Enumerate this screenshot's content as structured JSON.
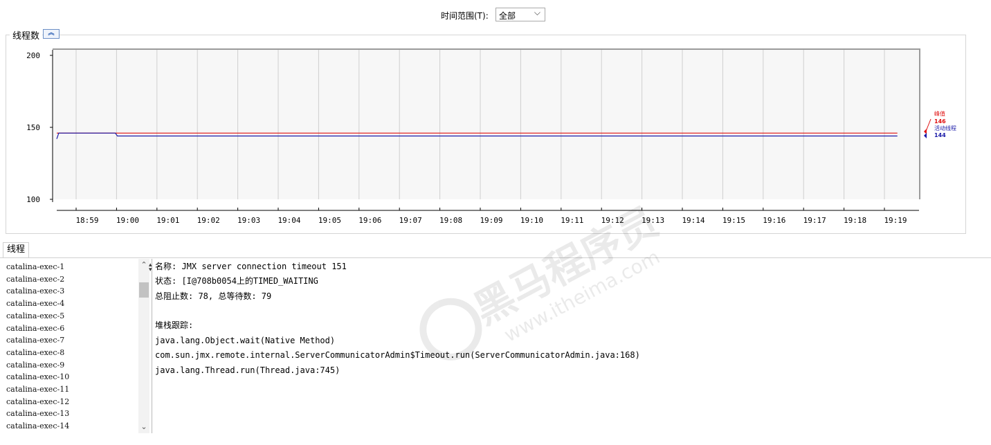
{
  "time_range": {
    "label": "时间范围(T):",
    "selected": "全部"
  },
  "panel": {
    "title": "线程数",
    "collapse_icon": "double-chevron-up-icon"
  },
  "chart_data": {
    "type": "line",
    "title": "线程数",
    "ylim": [
      100,
      200
    ],
    "yticks": [
      100,
      150,
      200
    ],
    "x_start": "18:58:30",
    "categories": [
      "18:59",
      "19:00",
      "19:01",
      "19:02",
      "19:03",
      "19:04",
      "19:05",
      "19:06",
      "19:07",
      "19:08",
      "19:09",
      "19:10",
      "19:11",
      "19:12",
      "19:13",
      "19:14",
      "19:15",
      "19:16",
      "19:17",
      "19:18",
      "19:19"
    ],
    "series": [
      {
        "name": "峰值",
        "color": "#e01010",
        "points": [
          [
            0,
            146
          ],
          [
            20.8,
            146
          ]
        ]
      },
      {
        "name": "活动线程",
        "color": "#1a1aa8",
        "points": [
          [
            0,
            142
          ],
          [
            0.05,
            146
          ],
          [
            1.45,
            146
          ],
          [
            1.5,
            144
          ],
          [
            20.8,
            144
          ]
        ]
      }
    ],
    "legend": [
      {
        "label": "峰值",
        "value": "146",
        "color": "#e01010"
      },
      {
        "label": "活动线程",
        "value": "144",
        "color": "#1a1aa8"
      }
    ]
  },
  "tabs": [
    {
      "label": "线程"
    }
  ],
  "threads": [
    "catalina-exec-1",
    "catalina-exec-2",
    "catalina-exec-3",
    "catalina-exec-4",
    "catalina-exec-5",
    "catalina-exec-6",
    "catalina-exec-7",
    "catalina-exec-8",
    "catalina-exec-9",
    "catalina-exec-10",
    "catalina-exec-11",
    "catalina-exec-12",
    "catalina-exec-13",
    "catalina-exec-14"
  ],
  "details": {
    "name_line": "名称: JMX server connection timeout 151",
    "state_line": "状态: [I@708b0054上的TIMED_WAITING",
    "counts_line": "总阻止数: 78, 总等待数: 79",
    "stack_label": "堆栈跟踪:",
    "stack": [
      "java.lang.Object.wait(Native Method)",
      "com.sun.jmx.remote.internal.ServerCommunicatorAdmin$Timeout.run(ServerCommunicatorAdmin.java:168)",
      "java.lang.Thread.run(Thread.java:745)"
    ]
  },
  "watermark": {
    "brand": "黑马程序员",
    "site": "www.itheima.com"
  }
}
